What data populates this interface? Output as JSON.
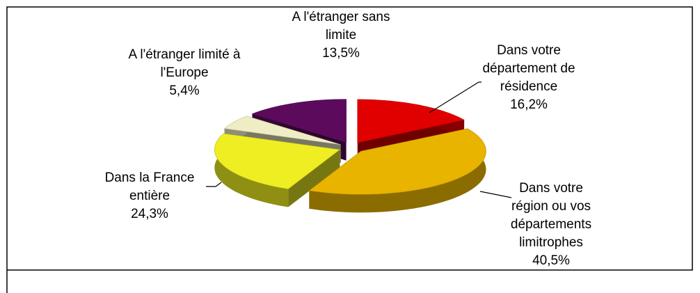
{
  "chart_data": {
    "type": "pie3d",
    "categories": [
      "Dans votre département de résidence",
      "Dans votre région ou vos départements limitrophes",
      "Dans la France entière",
      "A l'étranger limité à l'Europe",
      "A l'étranger sans limite"
    ],
    "values": [
      16.2,
      40.5,
      24.3,
      5.4,
      13.5
    ],
    "value_labels": [
      "16,2%",
      "40,5%",
      "24,3%",
      "5,4%",
      "13,5%"
    ],
    "colors": [
      "#e00000",
      "#e8b400",
      "#eeee22",
      "#efedc4",
      "#5c0b5c"
    ]
  }
}
